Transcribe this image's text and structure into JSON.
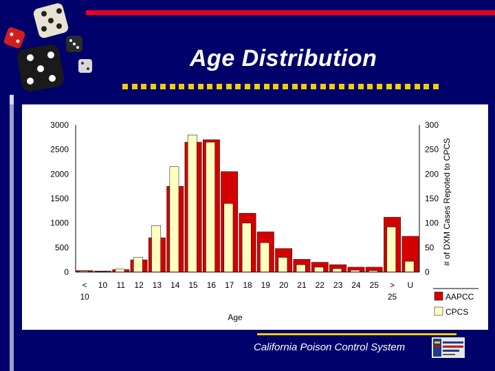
{
  "slide": {
    "title": "Age Distribution",
    "footer": "California Poison Control System"
  },
  "colors": {
    "background": "#00006b",
    "accent_red": "#e8001c",
    "accent_yellow": "#f0d000",
    "aapcc": "#d40000",
    "cpcs": "#ffffc0"
  },
  "chart_data": {
    "type": "bar",
    "categories": [
      {
        "label": "<",
        "sublabel": "10"
      },
      {
        "label": "10",
        "sublabel": ""
      },
      {
        "label": "11",
        "sublabel": ""
      },
      {
        "label": "12",
        "sublabel": ""
      },
      {
        "label": "13",
        "sublabel": ""
      },
      {
        "label": "14",
        "sublabel": ""
      },
      {
        "label": "15",
        "sublabel": ""
      },
      {
        "label": "16",
        "sublabel": ""
      },
      {
        "label": "17",
        "sublabel": ""
      },
      {
        "label": "18",
        "sublabel": ""
      },
      {
        "label": "19",
        "sublabel": ""
      },
      {
        "label": "20",
        "sublabel": ""
      },
      {
        "label": "21",
        "sublabel": ""
      },
      {
        "label": "22",
        "sublabel": ""
      },
      {
        "label": "23",
        "sublabel": ""
      },
      {
        "label": "24",
        "sublabel": ""
      },
      {
        "label": "25",
        "sublabel": ""
      },
      {
        "label": ">",
        "sublabel": "25"
      },
      {
        "label": "U",
        "sublabel": ""
      }
    ],
    "series": [
      {
        "name": "AAPCC",
        "axis": "left",
        "color": "#d40000",
        "values": [
          30,
          20,
          50,
          250,
          700,
          1750,
          2650,
          2700,
          2050,
          1200,
          820,
          480,
          260,
          200,
          150,
          100,
          100,
          1120,
          730
        ]
      },
      {
        "name": "CPCS",
        "axis": "right",
        "color": "#ffffc0",
        "values": [
          2,
          1,
          6,
          30,
          95,
          215,
          280,
          265,
          140,
          100,
          60,
          30,
          15,
          10,
          7,
          4,
          3,
          92,
          22
        ]
      }
    ],
    "xlabel": "Age",
    "ylabel_left": "",
    "ylabel_right": "# of DXM Cases Repoted to CPCS",
    "ylim_left": [
      0,
      3000
    ],
    "ylim_right": [
      0,
      300
    ],
    "yticks_left": [
      "0",
      "500",
      "1000",
      "1500",
      "2000",
      "2500",
      "3000"
    ],
    "yticks_right": [
      "0",
      "50",
      "100",
      "150",
      "200",
      "250",
      "300"
    ],
    "grid": false,
    "legend": "bottom-right"
  }
}
